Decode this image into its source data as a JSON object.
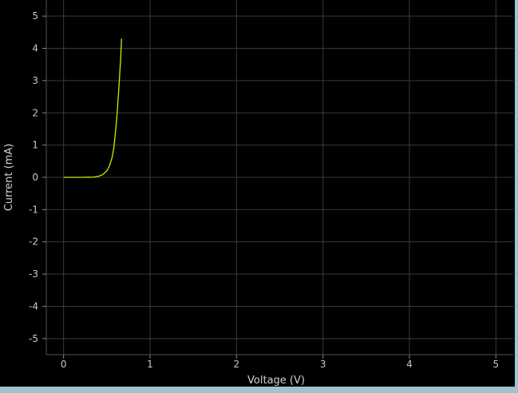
{
  "chart_data": {
    "type": "line",
    "title": "",
    "xlabel": "Voltage (V)",
    "ylabel": "Current (mA)",
    "xlim": [
      -0.2,
      5.2
    ],
    "ylim": [
      -5.5,
      5.5
    ],
    "x_ticks": [
      0,
      1,
      2,
      3,
      4,
      5
    ],
    "y_ticks": [
      5,
      4,
      3,
      2,
      1,
      0,
      -1,
      -2,
      -3,
      -4,
      -5
    ],
    "grid": true,
    "series": [
      {
        "color": "#c4f000",
        "x": [
          0,
          0.1,
          0.2,
          0.3,
          0.35,
          0.4,
          0.45,
          0.5,
          0.53,
          0.56,
          0.58,
          0.6,
          0.62,
          0.64,
          0.66,
          0.67
        ],
        "y": [
          0,
          0,
          0,
          0.005,
          0.01,
          0.03,
          0.08,
          0.2,
          0.35,
          0.6,
          0.9,
          1.4,
          2.0,
          2.8,
          3.7,
          4.3
        ]
      }
    ]
  },
  "colors": {
    "background": "#000000",
    "grid": "#3a3a3a",
    "axis_text": "#c8c8c8",
    "frame": "#9ec3d0"
  }
}
